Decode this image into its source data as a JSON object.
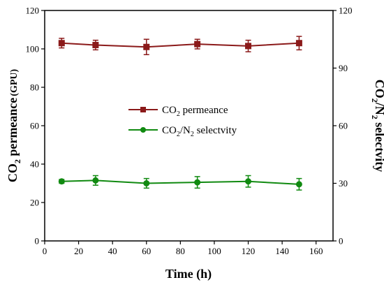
{
  "chart_data": {
    "type": "line",
    "x": [
      10,
      30,
      60,
      90,
      120,
      150
    ],
    "xlim": [
      0,
      170
    ],
    "ylim_left": [
      0,
      120
    ],
    "ylim_right": [
      0,
      120
    ],
    "x_ticks": [
      0,
      20,
      40,
      60,
      80,
      100,
      120,
      140,
      160
    ],
    "y_ticks_left": [
      0,
      20,
      40,
      60,
      80,
      100,
      120
    ],
    "y_ticks_right": [
      0,
      30,
      60,
      90,
      120
    ],
    "xlabel": "Time (h)",
    "ylabel_left": {
      "main": "CO",
      "sub": "2",
      "rest": " permeance",
      "unit": "(GPU)"
    },
    "ylabel_right": {
      "a": "CO",
      "a_sub": "2",
      "b": "/N",
      "b_sub": "2",
      "c": " selectvity"
    },
    "grid": false,
    "legend_position": "center-left",
    "series": [
      {
        "legend": {
          "a": "CO",
          "a_sub": "2",
          "b": " permeance"
        },
        "axis": "left",
        "marker": "square",
        "color": "#8b1a1a",
        "values": [
          103,
          102,
          101,
          102.5,
          101.5,
          103
        ],
        "errors": [
          2.5,
          2.5,
          4,
          2.5,
          3,
          3.5
        ]
      },
      {
        "legend": {
          "a": "CO",
          "a_sub": "2",
          "b": "/N",
          "b_sub": "2",
          "c": " selectvity"
        },
        "axis": "right",
        "marker": "circle",
        "color": "#118a11",
        "values": [
          31,
          31.5,
          30,
          30.5,
          31,
          29.5
        ],
        "errors": [
          1,
          2.5,
          2.5,
          3,
          3,
          3
        ]
      }
    ]
  }
}
